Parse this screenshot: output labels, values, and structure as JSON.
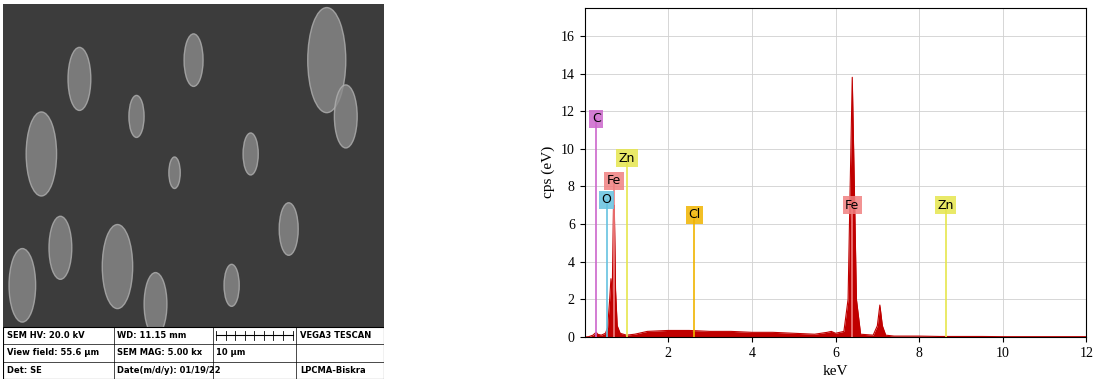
{
  "chart_data": {
    "type": "area",
    "x_label": "keV",
    "y_label": "cps (eV)",
    "x": [
      0.0,
      0.1,
      0.2,
      0.25,
      0.28,
      0.31,
      0.4,
      0.5,
      0.55,
      0.6,
      0.63,
      0.66,
      0.69,
      0.71,
      0.74,
      0.78,
      0.85,
      1.0,
      1.2,
      1.5,
      2.0,
      2.5,
      3.0,
      3.5,
      4.0,
      4.5,
      5.0,
      5.5,
      5.8,
      5.9,
      6.0,
      6.2,
      6.3,
      6.35,
      6.4,
      6.45,
      6.5,
      6.6,
      6.9,
      7.0,
      7.06,
      7.12,
      7.2,
      7.4,
      8.0,
      8.5,
      9.0,
      9.5,
      10.0,
      10.5,
      11.0,
      11.5,
      12.0
    ],
    "values": [
      0,
      0.02,
      0.1,
      0.2,
      0.25,
      0.15,
      0.1,
      0.2,
      0.5,
      2.0,
      3.1,
      2.2,
      6.8,
      7.0,
      2.5,
      0.6,
      0.2,
      0.1,
      0.15,
      0.3,
      0.35,
      0.35,
      0.3,
      0.3,
      0.25,
      0.25,
      0.2,
      0.15,
      0.25,
      0.3,
      0.2,
      0.3,
      2.0,
      8,
      13.8,
      8,
      2.0,
      0.15,
      0.1,
      0.6,
      1.7,
      0.6,
      0.1,
      0.05,
      0.05,
      0.03,
      0.03,
      0.03,
      0.02,
      0.02,
      0.02,
      0.02,
      0.02
    ],
    "color": "#c00000",
    "xlim": [
      0,
      12
    ],
    "xticks": [
      2,
      4,
      6,
      8,
      10,
      12
    ],
    "ylim": [
      0,
      17.5
    ],
    "yticks": [
      0,
      2,
      4,
      6,
      8,
      10,
      12,
      14,
      16
    ],
    "grid": true,
    "annotations": [
      {
        "text": "C",
        "x": 0.277,
        "y": 11.6,
        "color": "#cc66cc"
      },
      {
        "text": "Zn",
        "x": 1.01,
        "y": 9.5,
        "color": "#e6e64d"
      },
      {
        "text": "Fe",
        "x": 0.705,
        "y": 8.3,
        "color": "#f08080"
      },
      {
        "text": "O",
        "x": 0.525,
        "y": 7.3,
        "color": "#66c2e0"
      },
      {
        "text": "Cl",
        "x": 2.62,
        "y": 6.5,
        "color": "#f0b400"
      },
      {
        "text": "Fe",
        "x": 6.4,
        "y": 7.0,
        "color": "#f08080"
      },
      {
        "text": "Zn",
        "x": 8.63,
        "y": 7.0,
        "color": "#e6e64d"
      }
    ]
  },
  "sem_image": {
    "info_bar": [
      [
        "SEM HV: 20.0 kV",
        "WD: 11.15 mm",
        null,
        "VEGA3 TESCAN"
      ],
      [
        "View field: 55.6 μm",
        "SEM MAG: 5.00 kx",
        "10 μm",
        null
      ],
      [
        "Det: SE",
        "Date(m/d/y): 01/19/22",
        null,
        "LPCMA-Biskra"
      ]
    ]
  }
}
